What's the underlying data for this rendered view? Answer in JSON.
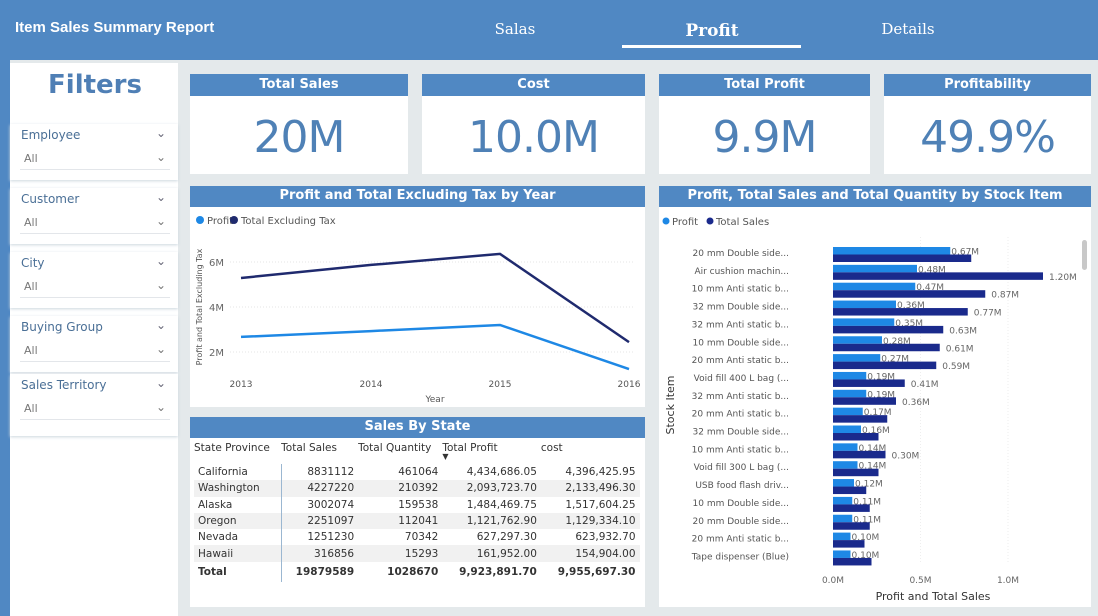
{
  "header": {
    "title": "Item Sales Summary Report",
    "tabs": [
      {
        "label": "Salas",
        "active": false
      },
      {
        "label": "Profit",
        "active": true
      },
      {
        "label": "Details",
        "active": false
      }
    ]
  },
  "filters": {
    "title": "Filters",
    "slicers": [
      {
        "label": "Employee",
        "value": "All"
      },
      {
        "label": "Customer",
        "value": "All"
      },
      {
        "label": "City",
        "value": "All"
      },
      {
        "label": "Buying Group",
        "value": "All"
      },
      {
        "label": "Sales Territory",
        "value": "All"
      }
    ]
  },
  "kpis": [
    {
      "label": "Total Sales",
      "value": "20M"
    },
    {
      "label": "Cost",
      "value": "10.0M"
    },
    {
      "label": "Total Profit",
      "value": "9.9M"
    },
    {
      "label": "Profitability",
      "value": "49.9%"
    }
  ],
  "colors": {
    "header": "#5088c3",
    "profit": "#1e88e5",
    "sales": "#1a2a8c",
    "line_total": "#1f2a6e"
  },
  "chart_data": [
    {
      "type": "line",
      "title": "Profit and Total Excluding Tax by Year",
      "xlabel": "Year",
      "ylabel": "Profit and Total Excluding Tax",
      "legend": "top-left",
      "x": [
        2013,
        2014,
        2015,
        2016
      ],
      "yticks": [
        "2M",
        "4M",
        "6M"
      ],
      "ytick_values": [
        2,
        4,
        6
      ],
      "ylim": [
        1,
        7
      ],
      "unit": "M",
      "series": [
        {
          "name": "Profit",
          "values": [
            2.67,
            2.93,
            3.2,
            1.24
          ]
        },
        {
          "name": "Total Excluding Tax",
          "values": [
            5.29,
            5.87,
            6.36,
            2.44
          ]
        }
      ]
    },
    {
      "type": "bar",
      "orientation": "horizontal",
      "title": "Profit, Total Sales and Total Quantity by Stock Item",
      "xlabel": "Profit and Total Sales",
      "ylabel": "Stock Item",
      "legend": "top-left",
      "xticks": [
        "0.0M",
        "0.5M",
        "1.0M"
      ],
      "xtick_values": [
        0,
        0.5,
        1.0
      ],
      "unit": "M",
      "categories": [
        "20 mm Double side...",
        "Air cushion machin...",
        "10 mm Anti static b...",
        "32 mm Double side...",
        "32 mm Anti static b...",
        "10 mm Double side...",
        "20 mm Anti static b...",
        "Void fill 400 L bag (...",
        "32 mm Anti static b...",
        "20 mm Anti static b...",
        "32 mm Double side...",
        "10 mm Anti static b...",
        "Void fill 300 L bag (...",
        "USB food flash driv...",
        "10 mm Double side...",
        "20 mm Double side...",
        "20 mm Anti static b...",
        "Tape dispenser (Blue)"
      ],
      "series": [
        {
          "name": "Profit",
          "values": [
            0.67,
            0.48,
            0.47,
            0.36,
            0.35,
            0.28,
            0.27,
            0.19,
            0.19,
            0.17,
            0.16,
            0.14,
            0.14,
            0.12,
            0.11,
            0.11,
            0.1,
            0.1
          ],
          "labels": [
            "0.67M",
            "0.48M",
            "0.47M",
            "0.36M",
            "0.35M",
            "0.28M",
            "0.27M",
            "0.19M",
            "0.19M",
            "0.17M",
            "0.16M",
            "0.14M",
            "0.14M",
            "0.12M",
            "0.11M",
            "0.11M",
            "0.10M",
            "0.10M"
          ]
        },
        {
          "name": "Total Sales",
          "values": [
            0.79,
            1.2,
            0.87,
            0.77,
            0.63,
            0.61,
            0.59,
            0.41,
            0.36,
            0.31,
            0.26,
            0.3,
            0.26,
            0.19,
            0.21,
            0.21,
            0.18,
            0.22
          ],
          "labels": [
            "",
            "1.20M",
            "0.87M",
            "0.77M",
            "0.63M",
            "0.61M",
            "0.59M",
            "0.41M",
            "0.36M",
            "",
            "",
            "0.30M",
            "",
            "",
            "",
            "",
            "",
            ""
          ]
        }
      ]
    }
  ],
  "table": {
    "title": "Sales By State",
    "columns": [
      "State Province",
      "Total Sales",
      "Total Quantity",
      "Total Profit",
      "cost"
    ],
    "sort_column": "Total Profit",
    "rows": [
      [
        "California",
        "8831112",
        "461064",
        "4,434,686.05",
        "4,396,425.95"
      ],
      [
        "Washington",
        "4227220",
        "210392",
        "2,093,723.70",
        "2,133,496.30"
      ],
      [
        "Alaska",
        "3002074",
        "159538",
        "1,484,469.75",
        "1,517,604.25"
      ],
      [
        "Oregon",
        "2251097",
        "112041",
        "1,121,762.90",
        "1,129,334.10"
      ],
      [
        "Nevada",
        "1251230",
        "70342",
        "627,297.30",
        "623,932.70"
      ],
      [
        "Hawaii",
        "316856",
        "15293",
        "161,952.00",
        "154,904.00"
      ]
    ],
    "total": [
      "Total",
      "19879589",
      "1028670",
      "9,923,891.70",
      "9,955,697.30"
    ]
  }
}
